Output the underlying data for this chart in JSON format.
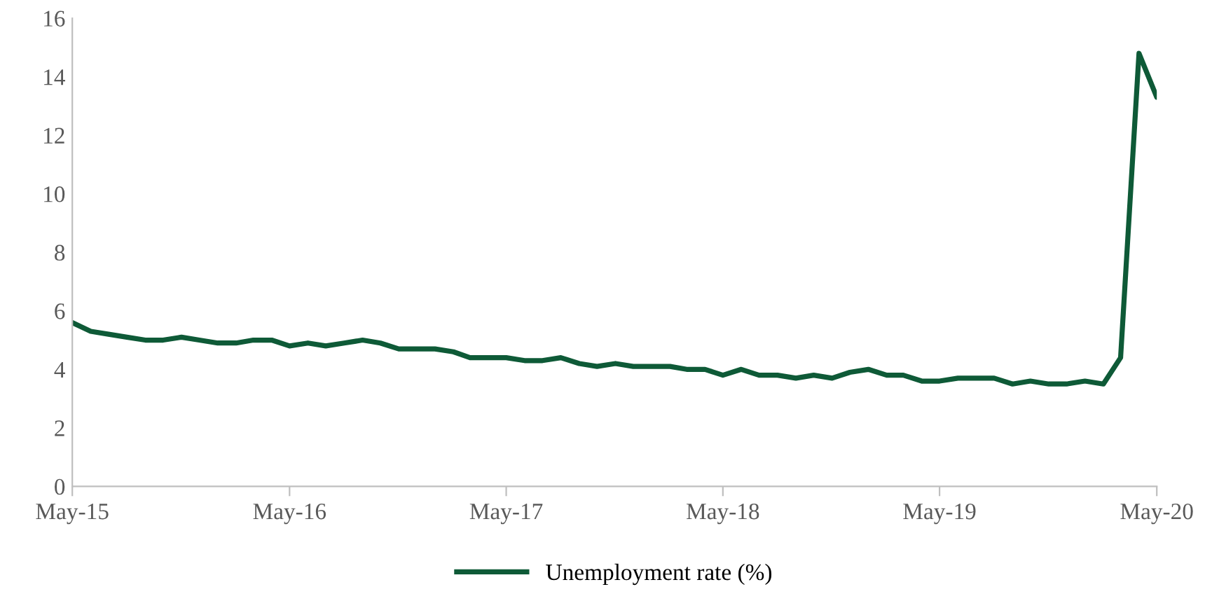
{
  "chart_data": {
    "type": "line",
    "x": [
      "2015-05",
      "2015-06",
      "2015-07",
      "2015-08",
      "2015-09",
      "2015-10",
      "2015-11",
      "2015-12",
      "2016-01",
      "2016-02",
      "2016-03",
      "2016-04",
      "2016-05",
      "2016-06",
      "2016-07",
      "2016-08",
      "2016-09",
      "2016-10",
      "2016-11",
      "2016-12",
      "2017-01",
      "2017-02",
      "2017-03",
      "2017-04",
      "2017-05",
      "2017-06",
      "2017-07",
      "2017-08",
      "2017-09",
      "2017-10",
      "2017-11",
      "2017-12",
      "2018-01",
      "2018-02",
      "2018-03",
      "2018-04",
      "2018-05",
      "2018-06",
      "2018-07",
      "2018-08",
      "2018-09",
      "2018-10",
      "2018-11",
      "2018-12",
      "2019-01",
      "2019-02",
      "2019-03",
      "2019-04",
      "2019-05",
      "2019-06",
      "2019-07",
      "2019-08",
      "2019-09",
      "2019-10",
      "2019-11",
      "2019-12",
      "2020-01",
      "2020-02",
      "2020-03",
      "2020-04",
      "2020-05"
    ],
    "series": [
      {
        "name": "Unemployment rate (%)",
        "color": "#0e5a37",
        "values": [
          5.6,
          5.3,
          5.2,
          5.1,
          5.0,
          5.0,
          5.1,
          5.0,
          4.9,
          4.9,
          5.0,
          5.0,
          4.8,
          4.9,
          4.8,
          4.9,
          5.0,
          4.9,
          4.7,
          4.7,
          4.7,
          4.6,
          4.4,
          4.4,
          4.4,
          4.3,
          4.3,
          4.4,
          4.2,
          4.1,
          4.2,
          4.1,
          4.1,
          4.1,
          4.0,
          4.0,
          3.8,
          4.0,
          3.8,
          3.8,
          3.7,
          3.8,
          3.7,
          3.9,
          4.0,
          3.8,
          3.8,
          3.6,
          3.6,
          3.7,
          3.7,
          3.7,
          3.5,
          3.6,
          3.5,
          3.5,
          3.6,
          3.5,
          4.4,
          14.8,
          13.3
        ]
      }
    ],
    "xlim": [
      "2015-05",
      "2020-05"
    ],
    "xticks": [
      {
        "value": "2015-05",
        "label": "May-15"
      },
      {
        "value": "2016-05",
        "label": "May-16"
      },
      {
        "value": "2017-05",
        "label": "May-17"
      },
      {
        "value": "2018-05",
        "label": "May-18"
      },
      {
        "value": "2019-05",
        "label": "May-19"
      },
      {
        "value": "2020-05",
        "label": "May-20"
      }
    ],
    "ylim": [
      0,
      16
    ],
    "yticks": [
      0,
      2,
      4,
      6,
      8,
      10,
      12,
      14,
      16
    ],
    "legend": "bottom",
    "line_style": "solid"
  }
}
